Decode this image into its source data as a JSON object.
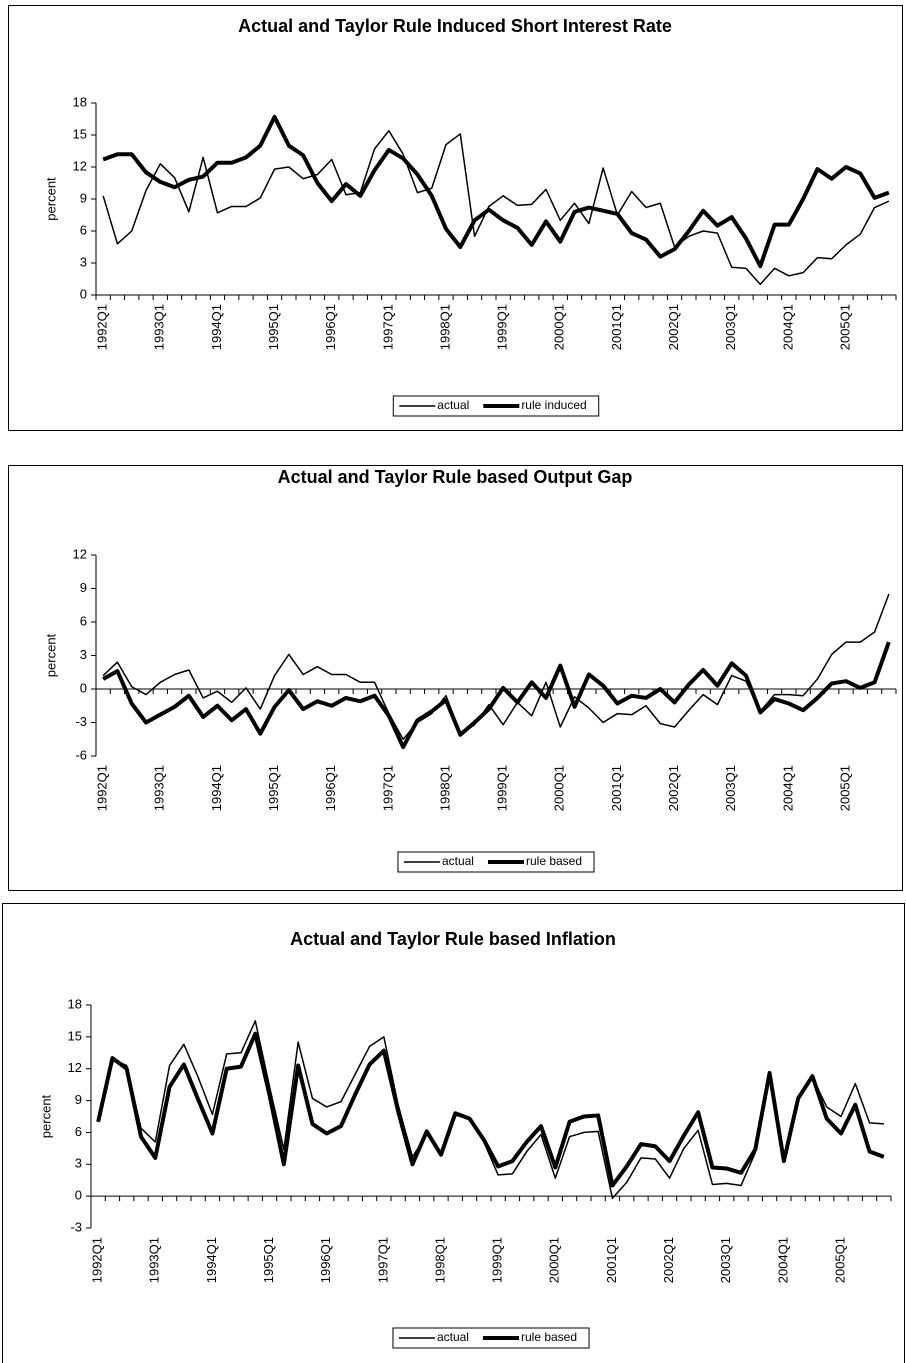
{
  "chart_data": [
    {
      "type": "line",
      "title": "Actual and Taylor Rule Induced Short Interest Rate",
      "ylabel": "percent",
      "categories": [
        "1992Q1",
        null,
        null,
        null,
        "1993Q1",
        null,
        null,
        null,
        "1994Q1",
        null,
        null,
        null,
        "1995Q1",
        null,
        null,
        null,
        "1996Q1",
        null,
        null,
        null,
        "1997Q1",
        null,
        null,
        null,
        "1998Q1",
        null,
        null,
        null,
        "1999Q1",
        null,
        null,
        null,
        "2000Q1",
        null,
        null,
        null,
        "2001Q1",
        null,
        null,
        null,
        "2002Q1",
        null,
        null,
        null,
        "2003Q1",
        null,
        null,
        null,
        "2004Q1",
        null,
        null,
        null,
        "2005Q1",
        null,
        null,
        null
      ],
      "series": [
        {
          "name": "actual",
          "color": "#000000",
          "line_width": 1.5,
          "values": [
            9.3,
            4.8,
            6,
            9.8,
            12.3,
            11,
            7.8,
            12.9,
            7.7,
            8.3,
            8.3,
            9.1,
            11.8,
            12,
            10.9,
            11.3,
            12.7,
            9.4,
            9.6,
            13.7,
            15.4,
            13.2,
            9.6,
            10,
            14.1,
            15.1,
            5.5,
            8.3,
            9.3,
            8.4,
            8.5,
            9.9,
            7,
            8.6,
            6.7,
            11.9,
            7.5,
            9.7,
            8.2,
            8.6,
            4.5,
            5.5,
            6,
            5.8,
            2.6,
            2.5,
            1,
            2.5,
            1.8,
            2.1,
            3.5,
            3.4,
            4.7,
            5.7,
            8.2,
            8.8
          ]
        },
        {
          "name": "rule induced",
          "color": "#000000",
          "line_width": 4,
          "values": [
            12.7,
            13.2,
            13.2,
            11.5,
            10.6,
            10.1,
            10.8,
            11.1,
            12.4,
            12.4,
            12.9,
            14,
            16.7,
            14,
            13.1,
            10.5,
            8.8,
            10.4,
            9.3,
            11.7,
            13.6,
            12.8,
            11.3,
            9.3,
            6.2,
            4.5,
            7,
            8,
            7,
            6.3,
            4.7,
            6.9,
            5,
            7.8,
            8.2,
            7.9,
            7.6,
            5.8,
            5.2,
            3.6,
            4.3,
            6,
            7.9,
            6.5,
            7.3,
            5.3,
            2.7,
            6.6,
            6.6,
            9,
            11.8,
            10.9,
            12,
            11.4,
            9.1,
            9.6
          ]
        }
      ],
      "ylim": [
        0,
        18
      ],
      "yticks": [
        0,
        3,
        6,
        9,
        12,
        15,
        18
      ],
      "grid": false
    },
    {
      "type": "line",
      "title": "Actual and Taylor Rule based Output Gap",
      "ylabel": "percent",
      "categories": [
        "1992Q1",
        null,
        null,
        null,
        "1993Q1",
        null,
        null,
        null,
        "1994Q1",
        null,
        null,
        null,
        "1995Q1",
        null,
        null,
        null,
        "1996Q1",
        null,
        null,
        null,
        "1997Q1",
        null,
        null,
        null,
        "1998Q1",
        null,
        null,
        null,
        "1999Q1",
        null,
        null,
        null,
        "2000Q1",
        null,
        null,
        null,
        "2001Q1",
        null,
        null,
        null,
        "2002Q1",
        null,
        null,
        null,
        "2003Q1",
        null,
        null,
        null,
        "2004Q1",
        null,
        null,
        null,
        "2005Q1",
        null,
        null,
        null
      ],
      "series": [
        {
          "name": "actual",
          "color": "#000000",
          "line_width": 1.5,
          "values": [
            1.2,
            2.4,
            0.2,
            -0.5,
            0.6,
            1.3,
            1.7,
            -0.8,
            -0.2,
            -1.2,
            0.1,
            -1.8,
            1.2,
            3.1,
            1.3,
            2,
            1.3,
            1.3,
            0.6,
            0.6,
            -2.2,
            -4.5,
            -3,
            -2.2,
            -0.6,
            -4,
            -3.2,
            -1.4,
            -3.2,
            -1.2,
            -2.4,
            0.6,
            -3.4,
            -0.7,
            -1.7,
            -3,
            -2.2,
            -2.3,
            -1.5,
            -3.1,
            -3.4,
            -1.9,
            -0.5,
            -1.4,
            1.2,
            0.7,
            -2,
            -0.5,
            -0.5,
            -0.6,
            0.9,
            3.1,
            4.2,
            4.2,
            5.1,
            8.5
          ]
        },
        {
          "name": "rule based",
          "color": "#000000",
          "line_width": 4,
          "values": [
            0.9,
            1.6,
            -1.3,
            -3,
            -2.3,
            -1.6,
            -0.6,
            -2.5,
            -1.5,
            -2.8,
            -1.8,
            -4,
            -1.6,
            -0.1,
            -1.8,
            -1.1,
            -1.5,
            -0.8,
            -1.1,
            -0.6,
            -2.4,
            -5.2,
            -2.8,
            -2,
            -1,
            -4.1,
            -3,
            -1.8,
            0.1,
            -1.2,
            0.6,
            -0.8,
            2.1,
            -1.6,
            1.3,
            0.3,
            -1.3,
            -0.6,
            -0.8,
            0,
            -1.2,
            0.4,
            1.7,
            0.3,
            2.3,
            1.2,
            -2.1,
            -0.9,
            -1.3,
            -1.9,
            -0.8,
            0.5,
            0.7,
            0.1,
            0.6,
            4.2
          ]
        }
      ],
      "ylim": [
        -6,
        12
      ],
      "yticks": [
        -6,
        -3,
        0,
        3,
        6,
        9,
        12
      ],
      "grid": false
    },
    {
      "type": "line",
      "title": "Actual and Taylor Rule based Inflation",
      "ylabel": "percent",
      "categories": [
        "1992Q1",
        null,
        null,
        null,
        "1993Q1",
        null,
        null,
        null,
        "1994Q1",
        null,
        null,
        null,
        "1995Q1",
        null,
        null,
        null,
        "1996Q1",
        null,
        null,
        null,
        "1997Q1",
        null,
        null,
        null,
        "1998Q1",
        null,
        null,
        null,
        "1999Q1",
        null,
        null,
        null,
        "2000Q1",
        null,
        null,
        null,
        "2001Q1",
        null,
        null,
        null,
        "2002Q1",
        null,
        null,
        null,
        "2003Q1",
        null,
        null,
        null,
        "2004Q1",
        null,
        null,
        null,
        "2005Q1",
        null,
        null,
        null
      ],
      "series": [
        {
          "name": "actual",
          "color": "#000000",
          "line_width": 1.5,
          "values": [
            7.1,
            12.9,
            12.3,
            6.4,
            5.1,
            12.3,
            14.3,
            11.2,
            7.7,
            13.4,
            13.5,
            16.5,
            10.3,
            4.4,
            14.5,
            9.2,
            8.4,
            8.9,
            11.5,
            14.1,
            15,
            8.6,
            3.7,
            5.8,
            4.2,
            7.6,
            7.4,
            5.1,
            2,
            2.1,
            4.2,
            5.8,
            1.7,
            5.6,
            6,
            6.1,
            -0.2,
            1.3,
            3.6,
            3.5,
            1.7,
            4.5,
            6.2,
            1.1,
            1.2,
            1,
            4.1,
            11.3,
            3.8,
            9.4,
            11.2,
            8.4,
            7.5,
            10.6,
            6.9,
            6.8
          ]
        },
        {
          "name": "rule based",
          "color": "#000000",
          "line_width": 4,
          "values": [
            7,
            13,
            12,
            5.6,
            3.6,
            10.3,
            12.4,
            9.1,
            5.9,
            12,
            12.2,
            15.3,
            9.5,
            3,
            12.3,
            6.8,
            5.9,
            6.6,
            9.6,
            12.4,
            13.7,
            8,
            3,
            6.1,
            3.9,
            7.8,
            7.3,
            5.3,
            2.8,
            3.3,
            5.1,
            6.6,
            2.7,
            7,
            7.5,
            7.6,
            1,
            2.8,
            4.9,
            4.7,
            3.3,
            5.7,
            7.9,
            2.7,
            2.6,
            2.2,
            4.4,
            11.6,
            3.3,
            9.2,
            11.3,
            7.3,
            5.9,
            8.6,
            4.2,
            3.7
          ]
        }
      ],
      "ylim": [
        -3,
        18
      ],
      "yticks": [
        -3,
        0,
        3,
        6,
        9,
        12,
        15,
        18
      ],
      "grid": false
    }
  ]
}
